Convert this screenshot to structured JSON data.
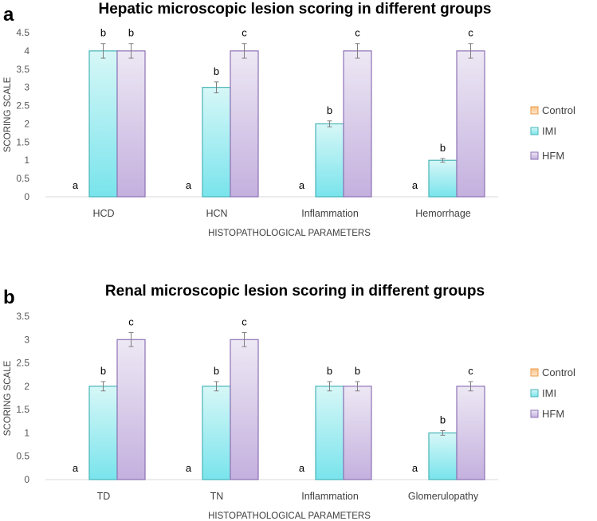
{
  "chart_data": [
    {
      "panel_label": "a",
      "type": "bar",
      "title": "Hepatic microscopic lesion scoring in different groups",
      "xlabel": "HISTOPATHOLOGICAL PARAMETERS",
      "ylabel": "SCORING SCALE",
      "ylim": [
        0,
        4.5
      ],
      "yticks": [
        "0",
        "0.5",
        "1",
        "1.5",
        "2",
        "2.5",
        "3",
        "3.5",
        "4",
        "4.5"
      ],
      "categories": [
        "HCD",
        "HCN",
        "Inflammation",
        "Hemorrhage"
      ],
      "series": [
        {
          "name": "Control",
          "values": [
            0,
            0,
            0,
            0
          ],
          "errors": [
            0,
            0,
            0,
            0
          ],
          "letters": [
            "a",
            "a",
            "a",
            "a"
          ]
        },
        {
          "name": "IMI",
          "values": [
            4,
            3,
            2,
            1
          ],
          "errors": [
            0.2,
            0.15,
            0.08,
            0.05
          ],
          "letters": [
            "b",
            "b",
            "b",
            "b"
          ]
        },
        {
          "name": "HFM",
          "values": [
            4,
            4,
            4,
            4
          ],
          "errors": [
            0.2,
            0.2,
            0.2,
            0.2
          ],
          "letters": [
            "b",
            "c",
            "c",
            "c"
          ]
        }
      ],
      "legend_position": "right"
    },
    {
      "panel_label": "b",
      "type": "bar",
      "title": "Renal microscopic lesion scoring in different groups",
      "xlabel": "HISTOPATHOLOGICAL PARAMETERS",
      "ylabel": "SCORING SCALE",
      "ylim": [
        0,
        3.5
      ],
      "yticks": [
        "0",
        "0.5",
        "1",
        "1.5",
        "2",
        "2.5",
        "3",
        "3.5"
      ],
      "categories": [
        "TD",
        "TN",
        "Inflammation",
        "Glomerulopathy"
      ],
      "series": [
        {
          "name": "Control",
          "values": [
            0,
            0,
            0,
            0
          ],
          "errors": [
            0,
            0,
            0,
            0
          ],
          "letters": [
            "a",
            "a",
            "a",
            "a"
          ]
        },
        {
          "name": "IMI",
          "values": [
            2,
            2,
            2,
            1
          ],
          "errors": [
            0.1,
            0.1,
            0.1,
            0.05
          ],
          "letters": [
            "b",
            "b",
            "b",
            "b"
          ]
        },
        {
          "name": "HFM",
          "values": [
            3,
            3,
            2,
            2
          ],
          "errors": [
            0.15,
            0.15,
            0.1,
            0.1
          ],
          "letters": [
            "c",
            "c",
            "b",
            "c"
          ]
        }
      ],
      "legend_position": "right"
    }
  ],
  "colors": {
    "Control": {
      "top": "#f9c48a",
      "bottom": "#fde6cc",
      "stroke": "#ed9a4a"
    },
    "IMI": {
      "top": "#d7f7f7",
      "bottom": "#79e4ec",
      "stroke": "#47b4b8"
    },
    "HFM": {
      "top": "#ede8f4",
      "bottom": "#c4b0de",
      "stroke": "#8e72b6"
    }
  }
}
